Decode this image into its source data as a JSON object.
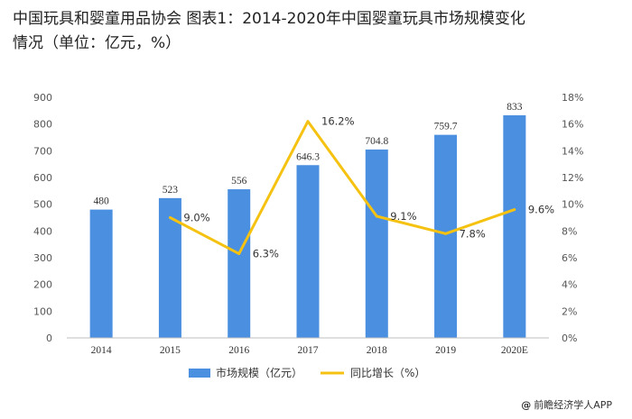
{
  "page": {
    "title_line1": "中国玩具和婴童用品协会 图表1：2014-2020年中国婴童玩具市场规模变化",
    "title_line2": "情况（单位：亿元，%）",
    "credit_symbol": "@",
    "credit": "前瞻经济学人APP"
  },
  "chart_data": {
    "type": "bar",
    "title": "",
    "categories": [
      "2014",
      "2015",
      "2016",
      "2017",
      "2018",
      "2019",
      "2020E"
    ],
    "series": [
      {
        "name": "市场规模（亿元）",
        "type": "bar",
        "axis": "left",
        "color": "#4A8FE0",
        "values": [
          480,
          523,
          556,
          646.3,
          704.8,
          759.7,
          833
        ],
        "labels": [
          "480",
          "523",
          "556",
          "646.3",
          "704.8",
          "759.7",
          "833"
        ]
      },
      {
        "name": "同比增长（%）",
        "type": "line",
        "axis": "right",
        "color": "#F5C211",
        "values": [
          null,
          9.0,
          6.3,
          16.2,
          9.1,
          7.8,
          9.6
        ],
        "labels": [
          "",
          "9.0%",
          "6.3%",
          "16.2%",
          "9.1%",
          "7.8%",
          "9.6%"
        ]
      }
    ],
    "y_left": {
      "range": [
        0,
        900
      ],
      "ticks": [
        "0",
        "100",
        "200",
        "300",
        "400",
        "500",
        "600",
        "700",
        "800",
        "900"
      ]
    },
    "y_right": {
      "range": [
        0,
        18
      ],
      "ticks": [
        "0%",
        "2%",
        "4%",
        "6%",
        "8%",
        "10%",
        "12%",
        "14%",
        "16%",
        "18%"
      ]
    },
    "grid": false,
    "legend_position": "bottom-center"
  }
}
